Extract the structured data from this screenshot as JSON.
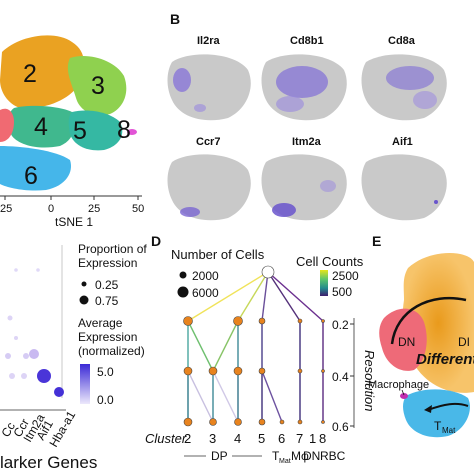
{
  "panels": {
    "A": {
      "clusters": [
        {
          "id": "2",
          "color": "#e9a21f"
        },
        {
          "id": "3",
          "color": "#8fd14f"
        },
        {
          "id": "4",
          "color": "#3cb39b"
        },
        {
          "id": "5",
          "color": "#2fb3a4"
        },
        {
          "id": "6",
          "color": "#3bb3e6"
        },
        {
          "id": "8",
          "color": "#e254d6"
        }
      ],
      "xlabel": "tSNE 1",
      "xticks": [
        "25",
        "0",
        "25",
        "50"
      ]
    },
    "B": {
      "letter": "B",
      "genes": [
        "Il2ra",
        "Cd8b1",
        "Cd8a",
        "Ccr7",
        "Itm2a",
        "Aif1"
      ]
    },
    "C": {
      "size_legend_title": [
        "Proportion of",
        "Expression"
      ],
      "size_values": [
        "0.25",
        "0.75"
      ],
      "color_legend_title": [
        "Average",
        "Expression",
        "(normalized)"
      ],
      "color_values": [
        "5.0",
        "0.0"
      ],
      "xlabel": "larker Genes",
      "gene_labels": [
        "Cc",
        "Ccr",
        "Itm2a",
        "Aif1",
        "Hba-a1"
      ],
      "high_color": "#3b2ad6",
      "low_color": "#dcd3f7"
    },
    "D": {
      "letter": "D",
      "cells_legend_title": "Number of Cells",
      "cells_values": [
        "2000",
        "6000"
      ],
      "counts_legend_title": "Cell Counts",
      "counts_values": [
        "2500",
        "500"
      ],
      "resolution_label": "Resolution",
      "resolution_ticks": [
        "0.2",
        "0.4",
        "0.6"
      ],
      "cluster_label": "Cluster",
      "clusters": [
        "2",
        "3",
        "4",
        "5",
        "6",
        "7",
        "1",
        "8"
      ],
      "group_dp": "DP",
      "cell_types": [
        "T",
        "Mat",
        "Mφ",
        "DN",
        "RBC"
      ],
      "node_color": "#e8831e"
    },
    "E": {
      "letter": "E",
      "labels": [
        "DN",
        "Differentia",
        "DI",
        "Macrophage",
        "T",
        "Mat"
      ],
      "colors": {
        "orange": "#f2a93b",
        "red": "#ee6a78",
        "blue": "#49b8e8",
        "magenta": "#c22fb0"
      }
    }
  }
}
